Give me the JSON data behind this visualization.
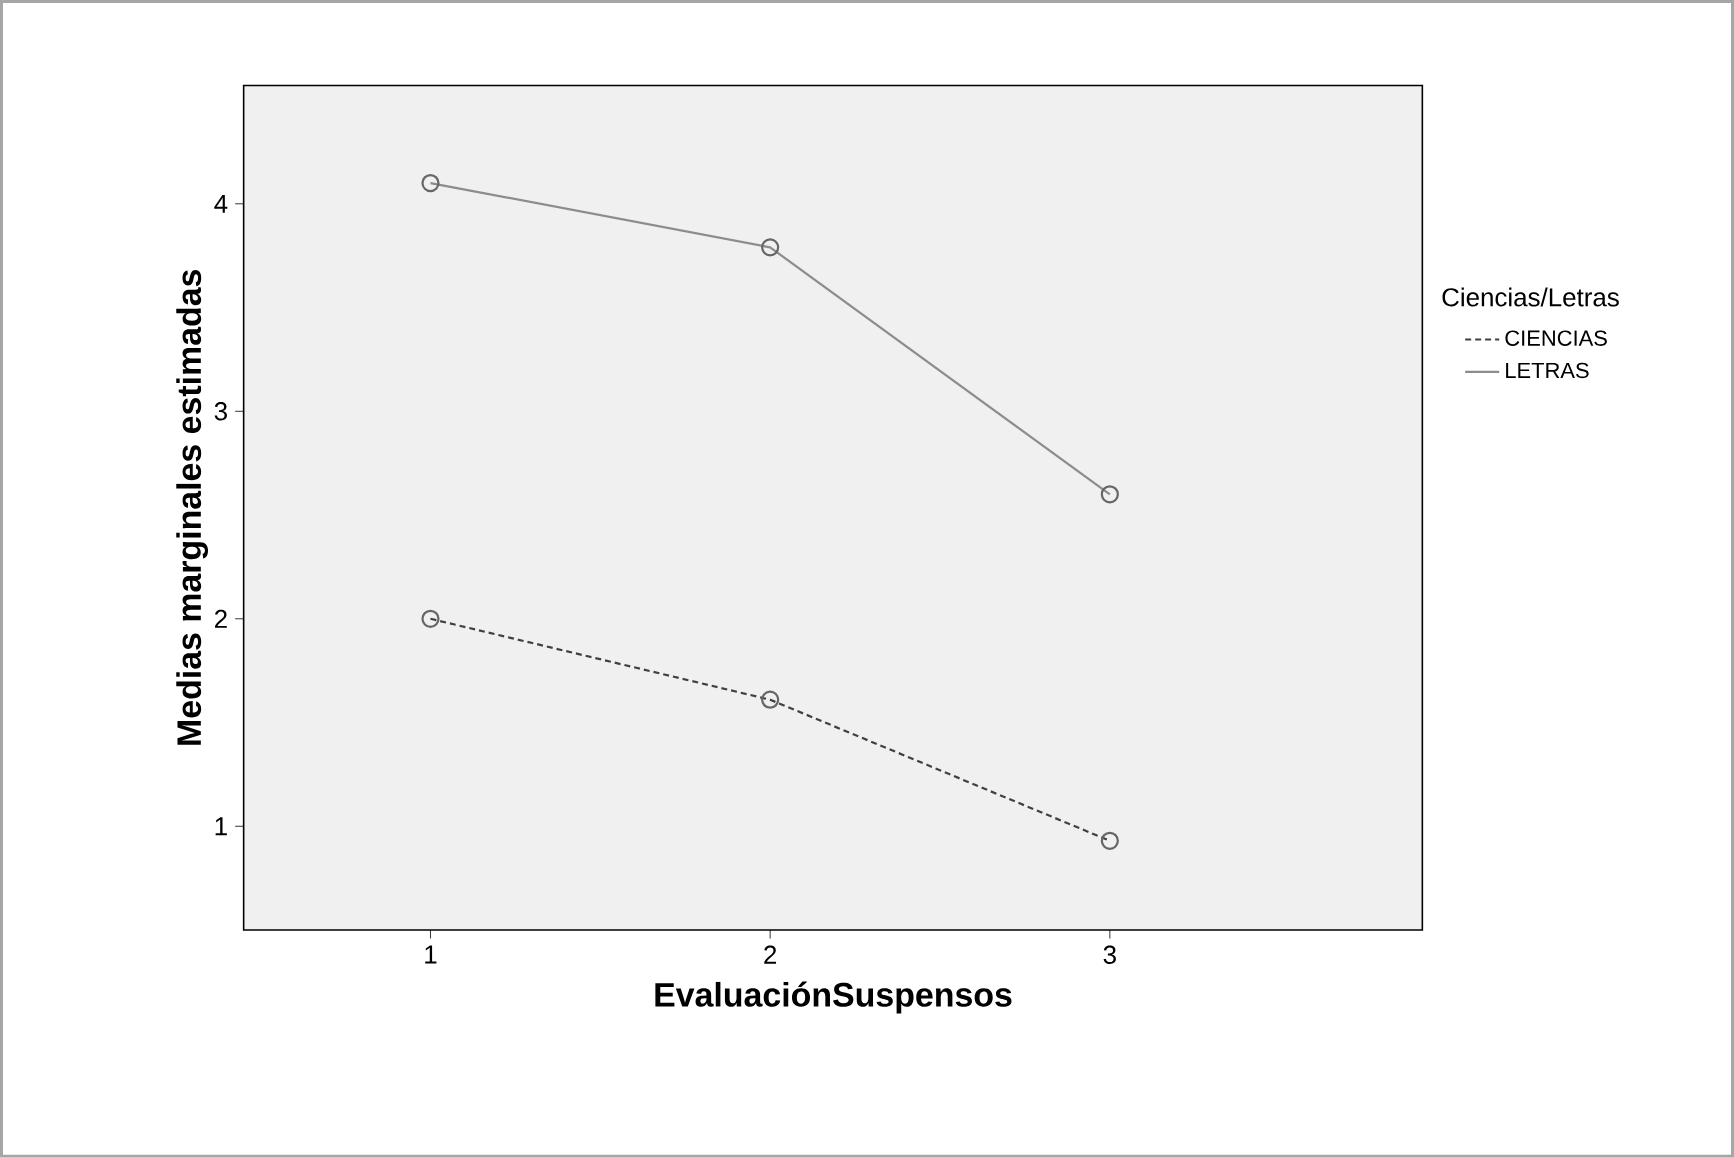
{
  "chart_data": {
    "type": "line",
    "xlabel": "EvaluaciónSuspensos",
    "ylabel": "Medias marginales estimadas",
    "legend_title": "Ciencias/Letras",
    "x": [
      1,
      2,
      3
    ],
    "xlim": [
      0.45,
      3.92
    ],
    "xticks": [
      1,
      2,
      3
    ],
    "ylim": [
      0.5,
      4.57
    ],
    "yticks": [
      1,
      2,
      3,
      4
    ],
    "series": [
      {
        "name": "CIENCIAS",
        "color": "#404040",
        "line_style": "dashed",
        "values": [
          2.0,
          1.61,
          0.93
        ]
      },
      {
        "name": "LETRAS",
        "color": "#8c8c8c",
        "line_style": "solid",
        "values": [
          4.1,
          3.79,
          2.6
        ]
      }
    ],
    "marker": "circle",
    "legend": "right",
    "grid": false
  }
}
